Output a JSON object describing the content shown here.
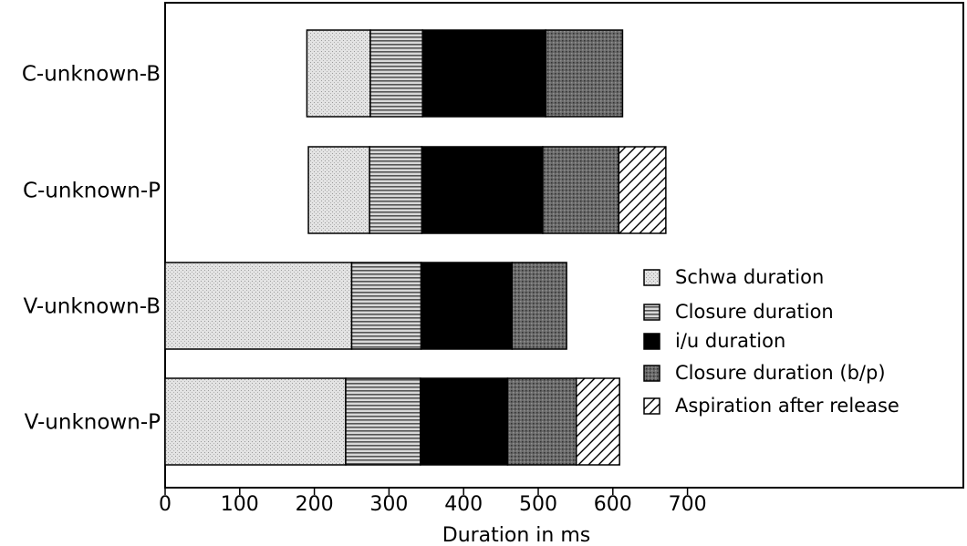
{
  "chart_data": {
    "type": "bar",
    "orientation": "horizontal",
    "stacked": true,
    "title": "",
    "xlabel": "Duration in ms",
    "ylabel": "",
    "xlim": [
      0,
      700
    ],
    "xticks": [
      0,
      100,
      200,
      300,
      400,
      500,
      600,
      700
    ],
    "legend_position": "right",
    "grid": false,
    "categories": [
      "C-unknown-B",
      "C-unknown-P",
      "V-unknown-B",
      "V-unknown-P"
    ],
    "offsets": [
      190,
      192,
      0,
      0
    ],
    "series": [
      {
        "name": "Schwa duration",
        "pattern": "dots-light",
        "values": [
          85,
          82,
          250,
          242
        ]
      },
      {
        "name": "Closure duration",
        "pattern": "horizontal-lines",
        "values": [
          70,
          70,
          93,
          100
        ]
      },
      {
        "name": "i/u duration",
        "pattern": "solid-black",
        "values": [
          165,
          162,
          122,
          117
        ]
      },
      {
        "name": "Closure duration (b/p)",
        "pattern": "dots-dark",
        "values": [
          103,
          102,
          73,
          92
        ]
      },
      {
        "name": "Aspiration after release",
        "pattern": "diagonal-hatch",
        "values": [
          0,
          63,
          0,
          58
        ]
      }
    ]
  }
}
